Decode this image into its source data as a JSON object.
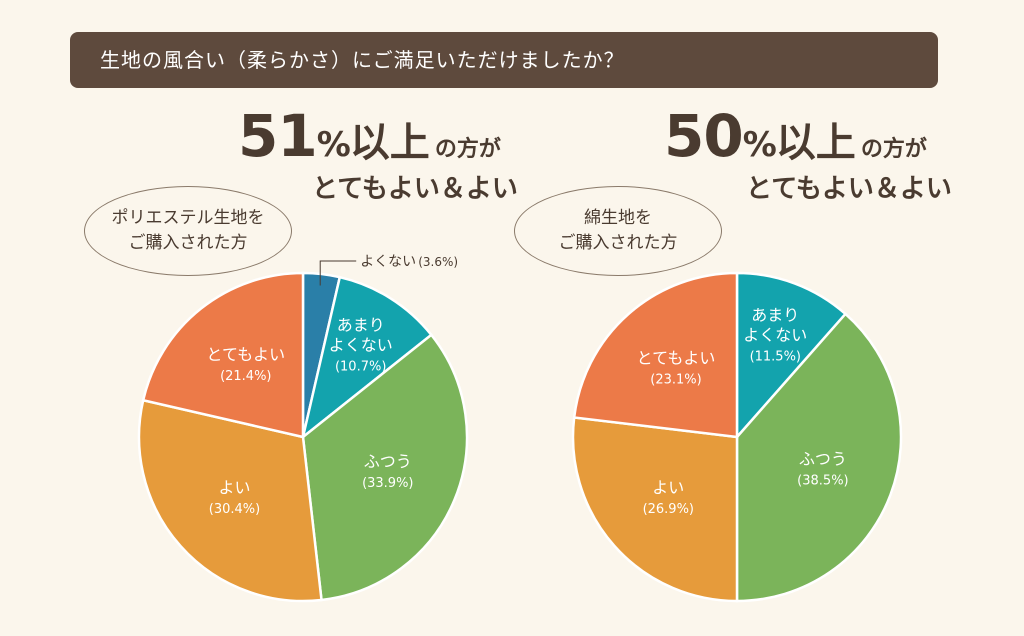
{
  "question": "生地の風合い（柔らかさ）にご満足いただけましたか？",
  "panels": [
    {
      "pct_number": "51",
      "pct_sign": "%",
      "ijo": "以上",
      "no_kata": "の方が",
      "sub": "とてもよい＆よい",
      "oval_line1": "ポリエステル生地を",
      "oval_line2": "ご購入された方"
    },
    {
      "pct_number": "50",
      "pct_sign": "%",
      "ijo": "以上",
      "no_kata": "の方が",
      "sub": "とてもよい＆よい",
      "oval_line1": "綿生地を",
      "oval_line2": "ご購入された方"
    }
  ],
  "chart_data": [
    {
      "type": "pie",
      "title": "",
      "slices": [
        {
          "label": "よくない",
          "value": 3.6,
          "display": "(3.6%)",
          "color": "#2a7fa8"
        },
        {
          "label": "あまり\nよくない",
          "value": 10.7,
          "display": "(10.7%)",
          "color": "#13a3ad"
        },
        {
          "label": "ふつう",
          "value": 33.9,
          "display": "(33.9%)",
          "color": "#7bb45a"
        },
        {
          "label": "よい",
          "value": 30.4,
          "display": "(30.4%)",
          "color": "#e69b3b"
        },
        {
          "label": "とてもよい",
          "value": 21.4,
          "display": "(21.4%)",
          "color": "#ec7a48"
        }
      ]
    },
    {
      "type": "pie",
      "title": "",
      "slices": [
        {
          "label": "あまり\nよくない",
          "value": 11.5,
          "display": "(11.5%)",
          "color": "#13a3ad"
        },
        {
          "label": "ふつう",
          "value": 38.5,
          "display": "(38.5%)",
          "color": "#7bb45a"
        },
        {
          "label": "よい",
          "value": 26.9,
          "display": "(26.9%)",
          "color": "#e69b3b"
        },
        {
          "label": "とてもよい",
          "value": 23.1,
          "display": "(23.1%)",
          "color": "#ec7a48"
        }
      ]
    }
  ]
}
